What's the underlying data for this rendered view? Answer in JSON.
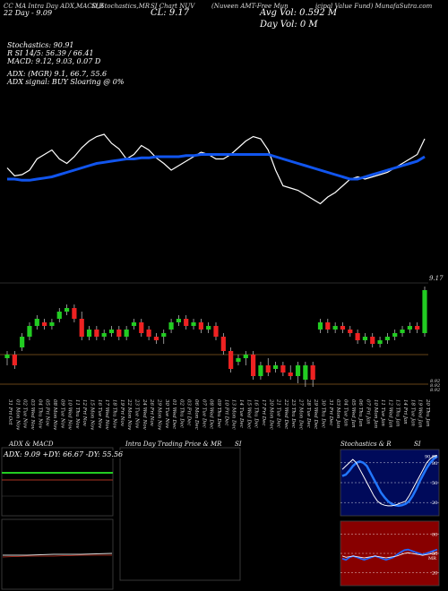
{
  "header": {
    "line1": "CC MA Intra Day ADX,MACD,R",
    "si_stoch": "SI,Stochastics,MR",
    "si_chart": "SI Chart NUV",
    "nuveen": "(Nuveen AMT-Free Mun",
    "icipal_value": "icipal Value Fund) MunafaSutra.com",
    "day_label": "22 Day - 9.09",
    "cl_label": "CL: 9.17",
    "avg_vol": "Avg Vol: 0.592 M",
    "day_vol": "Day Vol: 0 M"
  },
  "indicators": {
    "stochastics": "Stochastics: 90.91",
    "r_si": "R          SI 14/5: 56.39 / 66.41",
    "macd": "MACD: 9.12, 9.03, 0.07 D",
    "adx": "ADX:                    (MGR) 9.1, 66.7,  55.6",
    "adx_signal": "ADX  signal:                        BUY Sloaring @ 0%"
  },
  "price_axis": {
    "top_label": "9.17",
    "lower_labels": [
      "8.92",
      "8.92",
      "8.92"
    ]
  },
  "dates": [
    "31 Fri Oct",
    "01 Mon Nov",
    "02 Tue Nov",
    "03 Wed Nov",
    "04 Thu Nov",
    "05 Fri Nov",
    "08 Mon Nov",
    "09 Tue Nov",
    "10 Wed Nov",
    "11 Thu Nov",
    "12 Fri Nov",
    "15 Mon Nov",
    "16 Tue Nov",
    "17 Wed Nov",
    "18 Thu Nov",
    "19 Fri Nov",
    "22 Mon Nov",
    "23 Tue Nov",
    "24 Wed Nov",
    "26 Fri Nov",
    "29 Mon Nov",
    "30 Tue Nov",
    "01 Wed Dec",
    "02 Thu Dec",
    "03 Fri Dec",
    "06 Mon Dec",
    "07 Tue Dec",
    "08 Wed Dec",
    "09 Thu Dec",
    "10 Fri Dec",
    "13 Mon Dec",
    "14 Tue Dec",
    "15 Wed Dec",
    "16 Thu Dec",
    "17 Fri Dec",
    "20 Mon Dec",
    "21 Tue Dec",
    "22 Wed Dec",
    "23 Thu Dec",
    "27 Mon Dec",
    "28 Tue Dec",
    "29 Wed Dec",
    "30 Thu Dec",
    "31 Fri Dec",
    "03 Mon Jan",
    "04 Tue Jan",
    "05 Wed Jan",
    "06 Thu Jan",
    "07 Fri Jan",
    "10 Mon Jan",
    "11 Tue Jan",
    "12 Wed Jan",
    "13 Thu Jan",
    "14 Fri Jan",
    "18 Tue Jan",
    "19 Wed Jan",
    "20 Thu Jan"
  ],
  "panels": {
    "adx_macd": "ADX  & MACD",
    "adx_values": "ADX: 9.09  +DY: 66.67  -DY: 55.56",
    "intra": "Intra  Day Trading Price  & MR",
    "intra_si": "SI",
    "stoch_r": "Stochastics & R",
    "stoch_si": "SI",
    "stoch_value": "90.91",
    "stoch_ticks": [
      "80",
      "50",
      "20"
    ],
    "rsi_ticks": [
      "80",
      "50",
      "20"
    ],
    "rsi_value": "MR"
  },
  "colors": {
    "bg": "#000000",
    "bull": "#22cc22",
    "bear": "#ee2222",
    "blue": "#1155ee",
    "white": "#ffffff",
    "orange": "#cc8833"
  },
  "chart_data": {
    "type": "candlestick",
    "candles": [
      {
        "o": 8.98,
        "h": 9.0,
        "l": 8.96,
        "c": 8.99
      },
      {
        "o": 8.99,
        "h": 9.0,
        "l": 8.95,
        "c": 8.96
      },
      {
        "o": 9.01,
        "h": 9.05,
        "l": 9.0,
        "c": 9.04
      },
      {
        "o": 9.04,
        "h": 9.08,
        "l": 9.03,
        "c": 9.07
      },
      {
        "o": 9.07,
        "h": 9.1,
        "l": 9.06,
        "c": 9.09
      },
      {
        "o": 9.08,
        "h": 9.09,
        "l": 9.06,
        "c": 9.07
      },
      {
        "o": 9.07,
        "h": 9.09,
        "l": 9.06,
        "c": 9.08
      },
      {
        "o": 9.09,
        "h": 9.12,
        "l": 9.08,
        "c": 9.11
      },
      {
        "o": 9.11,
        "h": 9.13,
        "l": 9.1,
        "c": 9.12
      },
      {
        "o": 9.12,
        "h": 9.13,
        "l": 9.08,
        "c": 9.09
      },
      {
        "o": 9.09,
        "h": 9.11,
        "l": 9.03,
        "c": 9.04
      },
      {
        "o": 9.04,
        "h": 9.07,
        "l": 9.03,
        "c": 9.06
      },
      {
        "o": 9.06,
        "h": 9.07,
        "l": 9.03,
        "c": 9.04
      },
      {
        "o": 9.04,
        "h": 9.06,
        "l": 9.03,
        "c": 9.05
      },
      {
        "o": 9.05,
        "h": 9.07,
        "l": 9.04,
        "c": 9.06
      },
      {
        "o": 9.06,
        "h": 9.07,
        "l": 9.03,
        "c": 9.04
      },
      {
        "o": 9.04,
        "h": 9.07,
        "l": 9.03,
        "c": 9.06
      },
      {
        "o": 9.07,
        "h": 9.09,
        "l": 9.06,
        "c": 9.08
      },
      {
        "o": 9.08,
        "h": 9.09,
        "l": 9.04,
        "c": 9.05
      },
      {
        "o": 9.06,
        "h": 9.07,
        "l": 9.03,
        "c": 9.04
      },
      {
        "o": 9.04,
        "h": 9.05,
        "l": 9.02,
        "c": 9.03
      },
      {
        "o": 9.04,
        "h": 9.06,
        "l": 9.02,
        "c": 9.05
      },
      {
        "o": 9.06,
        "h": 9.09,
        "l": 9.05,
        "c": 9.08
      },
      {
        "o": 9.08,
        "h": 9.1,
        "l": 9.07,
        "c": 9.09
      },
      {
        "o": 9.09,
        "h": 9.1,
        "l": 9.06,
        "c": 9.07
      },
      {
        "o": 9.07,
        "h": 9.09,
        "l": 9.06,
        "c": 9.08
      },
      {
        "o": 9.08,
        "h": 9.09,
        "l": 9.05,
        "c": 9.06
      },
      {
        "o": 9.06,
        "h": 9.08,
        "l": 9.05,
        "c": 9.07
      },
      {
        "o": 9.07,
        "h": 9.08,
        "l": 9.03,
        "c": 9.04
      },
      {
        "o": 9.04,
        "h": 9.05,
        "l": 8.99,
        "c": 9.0
      },
      {
        "o": 9.0,
        "h": 9.01,
        "l": 8.94,
        "c": 8.95
      },
      {
        "o": 8.97,
        "h": 8.99,
        "l": 8.96,
        "c": 8.98
      },
      {
        "o": 8.98,
        "h": 9.0,
        "l": 8.96,
        "c": 8.99
      },
      {
        "o": 8.99,
        "h": 9.0,
        "l": 8.92,
        "c": 8.93
      },
      {
        "o": 8.93,
        "h": 8.97,
        "l": 8.92,
        "c": 8.96
      },
      {
        "o": 8.96,
        "h": 8.98,
        "l": 8.93,
        "c": 8.94
      },
      {
        "o": 8.95,
        "h": 8.97,
        "l": 8.94,
        "c": 8.96
      },
      {
        "o": 8.96,
        "h": 8.97,
        "l": 8.93,
        "c": 8.94
      },
      {
        "o": 8.94,
        "h": 8.96,
        "l": 8.92,
        "c": 8.93
      },
      {
        "o": 8.93,
        "h": 8.97,
        "l": 8.91,
        "c": 8.96
      },
      {
        "o": 8.92,
        "h": 8.97,
        "l": 8.9,
        "c": 8.96
      },
      {
        "o": 8.96,
        "h": 8.97,
        "l": 8.9,
        "c": 8.92
      },
      {
        "o": 9.06,
        "h": 9.09,
        "l": 9.05,
        "c": 9.08
      },
      {
        "o": 9.08,
        "h": 9.09,
        "l": 9.05,
        "c": 9.06
      },
      {
        "o": 9.06,
        "h": 9.08,
        "l": 9.05,
        "c": 9.07
      },
      {
        "o": 9.07,
        "h": 9.08,
        "l": 9.05,
        "c": 9.06
      },
      {
        "o": 9.06,
        "h": 9.07,
        "l": 9.04,
        "c": 9.05
      },
      {
        "o": 9.05,
        "h": 9.06,
        "l": 9.02,
        "c": 9.03
      },
      {
        "o": 9.03,
        "h": 9.05,
        "l": 9.02,
        "c": 9.04
      },
      {
        "o": 9.04,
        "h": 9.05,
        "l": 9.01,
        "c": 9.02
      },
      {
        "o": 9.02,
        "h": 9.04,
        "l": 9.01,
        "c": 9.03
      },
      {
        "o": 9.03,
        "h": 9.05,
        "l": 9.02,
        "c": 9.04
      },
      {
        "o": 9.04,
        "h": 9.06,
        "l": 9.03,
        "c": 9.05
      },
      {
        "o": 9.05,
        "h": 9.07,
        "l": 9.04,
        "c": 9.06
      },
      {
        "o": 9.06,
        "h": 9.08,
        "l": 9.05,
        "c": 9.07
      },
      {
        "o": 9.07,
        "h": 9.08,
        "l": 9.05,
        "c": 9.06
      },
      {
        "o": 9.05,
        "h": 9.18,
        "l": 9.04,
        "c": 9.17
      }
    ],
    "ylim": [
      8.88,
      9.2
    ],
    "stoch_line": [
      62,
      55,
      56,
      60,
      70,
      74,
      78,
      70,
      66,
      72,
      80,
      86,
      90,
      92,
      84,
      79,
      70,
      74,
      82,
      78,
      71,
      66,
      60,
      64,
      68,
      72,
      76,
      74,
      70,
      70,
      74,
      80,
      86,
      90,
      88,
      78,
      60,
      46,
      44,
      42,
      38,
      34,
      30,
      36,
      40,
      46,
      52,
      54,
      52,
      54,
      56,
      58,
      62,
      66,
      70,
      74,
      88
    ],
    "blue_line": [
      52,
      52,
      51,
      51,
      52,
      53,
      54,
      56,
      58,
      60,
      62,
      64,
      66,
      67,
      68,
      69,
      70,
      70,
      71,
      71,
      72,
      72,
      72,
      72,
      73,
      73,
      74,
      74,
      74,
      74,
      74,
      74,
      74,
      74,
      74,
      74,
      72,
      70,
      68,
      66,
      64,
      62,
      60,
      58,
      56,
      54,
      52,
      52,
      54,
      56,
      58,
      60,
      62,
      64,
      66,
      68,
      72
    ],
    "stoch_panel": {
      "k": [
        70,
        75,
        80,
        85,
        80,
        70,
        60,
        50,
        40,
        30,
        22,
        18,
        16,
        15,
        15,
        16,
        18,
        20,
        22,
        30,
        40,
        50,
        60,
        70,
        80,
        86,
        90,
        91
      ],
      "d": [
        60,
        62,
        68,
        75,
        80,
        82,
        80,
        75,
        65,
        55,
        45,
        35,
        28,
        22,
        18,
        16,
        15,
        16,
        18,
        22,
        30,
        40,
        52,
        62,
        72,
        80,
        86,
        90
      ],
      "ticks": [
        80,
        50,
        20
      ]
    },
    "rsi_panel": {
      "line1": [
        42,
        40,
        44,
        46,
        44,
        42,
        40,
        42,
        44,
        46,
        44,
        42,
        40,
        42,
        44,
        48,
        52,
        55,
        56,
        54,
        52,
        50,
        48,
        50,
        52,
        54,
        56
      ],
      "line2": [
        46,
        44,
        45,
        46,
        45,
        44,
        43,
        44,
        45,
        46,
        45,
        44,
        43,
        44,
        45,
        46,
        48,
        50,
        51,
        50,
        49,
        48,
        47,
        48,
        49,
        50,
        52
      ],
      "ticks": [
        80,
        50,
        20
      ]
    },
    "adx_panel": {
      "adx": 9.09,
      "plus_dy": 66.67,
      "minus_dy": 55.56
    }
  }
}
